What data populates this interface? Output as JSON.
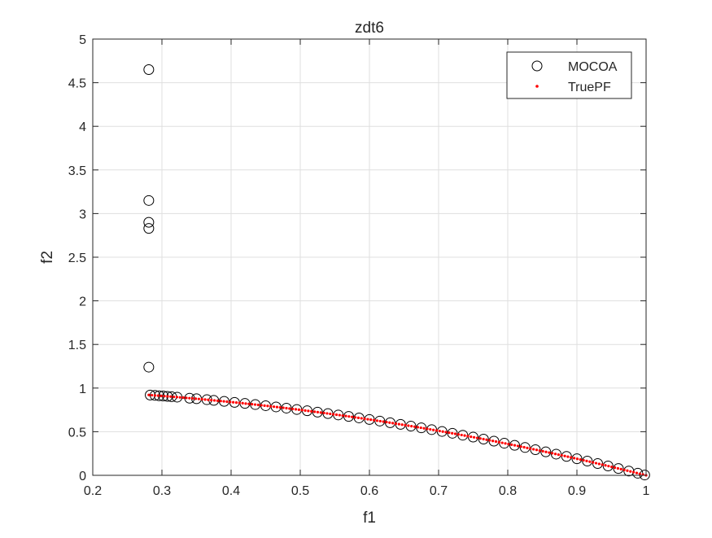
{
  "chart_data": {
    "type": "scatter",
    "title": "zdt6",
    "xlabel": "f1",
    "ylabel": "f2",
    "xlim": [
      0.2,
      1
    ],
    "ylim": [
      0,
      5
    ],
    "xticks": [
      0.2,
      0.3,
      0.4,
      0.5,
      0.6,
      0.7,
      0.8,
      0.9,
      1
    ],
    "xtick_labels": [
      "0.2",
      "0.3",
      "0.4",
      "0.5",
      "0.6",
      "0.7",
      "0.8",
      "0.9",
      "1"
    ],
    "yticks": [
      0,
      0.5,
      1,
      1.5,
      2,
      2.5,
      3,
      3.5,
      4,
      4.5,
      5
    ],
    "ytick_labels": [
      "0",
      "0.5",
      "1",
      "1.5",
      "2",
      "2.5",
      "3",
      "3.5",
      "4",
      "4.5",
      "5"
    ],
    "grid": true,
    "legend_position": "top-right",
    "series": [
      {
        "name": "MOCOA",
        "marker": "circle-open",
        "color": "#000000",
        "points": [
          [
            0.281,
            4.65
          ],
          [
            0.281,
            3.15
          ],
          [
            0.281,
            2.9
          ],
          [
            0.281,
            2.83
          ],
          [
            0.281,
            1.24
          ],
          [
            0.283,
            0.92
          ],
          [
            0.29,
            0.916
          ],
          [
            0.296,
            0.912
          ],
          [
            0.302,
            0.909
          ],
          [
            0.308,
            0.905
          ],
          [
            0.314,
            0.901
          ],
          [
            0.322,
            0.896
          ],
          [
            0.34,
            0.884
          ],
          [
            0.35,
            0.878
          ],
          [
            0.365,
            0.867
          ],
          [
            0.375,
            0.859
          ],
          [
            0.39,
            0.848
          ],
          [
            0.405,
            0.836
          ],
          [
            0.42,
            0.824
          ],
          [
            0.435,
            0.811
          ],
          [
            0.45,
            0.798
          ],
          [
            0.465,
            0.784
          ],
          [
            0.48,
            0.77
          ],
          [
            0.495,
            0.755
          ],
          [
            0.51,
            0.74
          ],
          [
            0.525,
            0.724
          ],
          [
            0.54,
            0.708
          ],
          [
            0.555,
            0.692
          ],
          [
            0.57,
            0.675
          ],
          [
            0.585,
            0.658
          ],
          [
            0.6,
            0.64
          ],
          [
            0.615,
            0.622
          ],
          [
            0.63,
            0.603
          ],
          [
            0.645,
            0.584
          ],
          [
            0.66,
            0.564
          ],
          [
            0.675,
            0.544
          ],
          [
            0.69,
            0.524
          ],
          [
            0.705,
            0.503
          ],
          [
            0.72,
            0.482
          ],
          [
            0.735,
            0.46
          ],
          [
            0.75,
            0.438
          ],
          [
            0.765,
            0.415
          ],
          [
            0.78,
            0.392
          ],
          [
            0.795,
            0.368
          ],
          [
            0.81,
            0.344
          ],
          [
            0.825,
            0.319
          ],
          [
            0.84,
            0.294
          ],
          [
            0.855,
            0.269
          ],
          [
            0.87,
            0.243
          ],
          [
            0.885,
            0.217
          ],
          [
            0.9,
            0.19
          ],
          [
            0.915,
            0.163
          ],
          [
            0.93,
            0.135
          ],
          [
            0.945,
            0.107
          ],
          [
            0.96,
            0.078
          ],
          [
            0.975,
            0.049
          ],
          [
            0.988,
            0.024
          ],
          [
            0.998,
            0.004
          ]
        ]
      },
      {
        "name": "TruePF",
        "marker": "dot",
        "color": "#ff0000",
        "function": "f2 = 1 - f1^2",
        "x_range": [
          0.281,
          1
        ],
        "n_points": 160
      }
    ]
  }
}
